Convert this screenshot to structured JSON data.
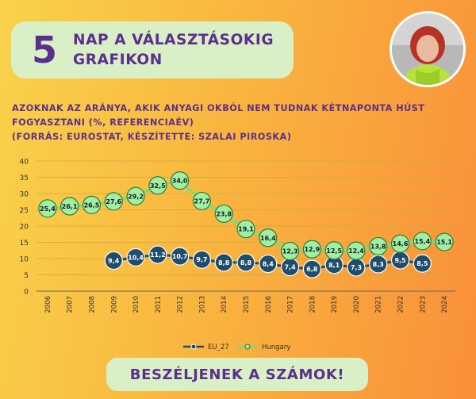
{
  "banner": {
    "number": "5",
    "line1": "NAP A VÁLASZTÁSOKIG",
    "line2": "GRAFIKON"
  },
  "subtitle": {
    "line1": "AZOKNAK AZ ARÁNYA, AKIK ANYAGI OKBÓL NEM TUDNAK KÉTNAPONTA HÚST",
    "line2": "FOGYASZTANI (%, REFERENCIAÉV)",
    "line3": "(FORRÁS: EUROSTAT, KÉSZÍTETTE: SZALAI PIROSKA)"
  },
  "footer": {
    "label": "BESZÉLJENEK A SZÁMOK!"
  },
  "colors": {
    "eu_line": "#1e4d6e",
    "eu_marker_fill": "#1e4d6e",
    "hu_line": "#6fe08a",
    "hu_marker_fill": "#9ff0a6",
    "hu_marker_stroke": "#2e7d32",
    "accent": "#5b2f8f"
  },
  "chart_data": {
    "type": "line",
    "x": [
      "2006",
      "2007",
      "2008",
      "2009",
      "2010",
      "2011",
      "2012",
      "2013",
      "2014",
      "2015",
      "2016",
      "2017",
      "2018",
      "2019",
      "2020",
      "2021",
      "2022",
      "2023",
      "2024"
    ],
    "ylim": [
      0,
      40
    ],
    "yticks": [
      0,
      5,
      10,
      15,
      20,
      25,
      30,
      35,
      40
    ],
    "grid": true,
    "legend_position": "bottom",
    "series": [
      {
        "name": "EU_27",
        "values": [
          null,
          null,
          null,
          9.4,
          10.4,
          11.2,
          10.7,
          9.7,
          8.8,
          8.8,
          8.4,
          7.4,
          6.8,
          8.1,
          7.3,
          8.3,
          9.5,
          8.5,
          null
        ],
        "labels": [
          null,
          null,
          null,
          "9,4",
          "10,4",
          "11,2",
          "10,7",
          "9,7",
          "8,8",
          "8,8",
          "8,4",
          "7,4",
          "6,8",
          "8,1",
          "7,3",
          "8,3",
          "9,5",
          "8,5",
          null
        ]
      },
      {
        "name": "Hungary",
        "values": [
          25.4,
          26.1,
          26.5,
          27.6,
          29.2,
          32.5,
          34.0,
          27.7,
          23.8,
          19.1,
          16.4,
          12.3,
          12.9,
          12.5,
          12.4,
          13.8,
          14.6,
          15.4,
          15.1
        ],
        "labels": [
          "25,4",
          "26,1",
          "26,5",
          "27,6",
          "29,2",
          "32,5",
          "34,0",
          "27,7",
          "23,8",
          "19,1",
          "16,4",
          "12,3",
          "12,9",
          "12,5",
          "12,4",
          "13,8",
          "14,6",
          "15,4",
          "15,1"
        ]
      }
    ]
  }
}
